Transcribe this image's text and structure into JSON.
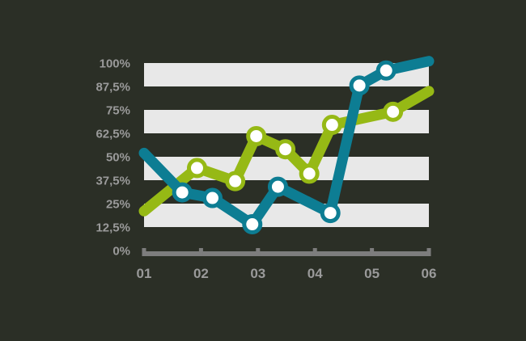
{
  "colors": {
    "background": "#2b2f26",
    "band_light": "#e8e8e8",
    "band_dark": "#2b2f26",
    "axis": "#7d7d7d",
    "tick_label": "#9a9a9a",
    "marker_fill": "#ffffff"
  },
  "chart_data": {
    "type": "line",
    "title": "",
    "xlabel": "",
    "ylabel": "",
    "grid": "alternating horizontal bands",
    "legend": "none",
    "xlim": [
      1,
      6
    ],
    "ylim": [
      0,
      100
    ],
    "x_tick_labels": [
      "01",
      "02",
      "03",
      "04",
      "05",
      "06"
    ],
    "x_tick_values": [
      1,
      2,
      3,
      4,
      5,
      6
    ],
    "y_tick_labels": [
      "0%",
      "12,5%",
      "25%",
      "37,5%",
      "50%",
      "62,5%",
      "75%",
      "87,5%",
      "100%"
    ],
    "y_tick_values": [
      0,
      12.5,
      25,
      37.5,
      50,
      62.5,
      75,
      87.5,
      100
    ],
    "series": [
      {
        "color": "#96b915",
        "points": [
          {
            "x": 1.0,
            "y": 21,
            "marker": false
          },
          {
            "x": 1.93,
            "y": 44,
            "marker": true
          },
          {
            "x": 2.6,
            "y": 37,
            "marker": true
          },
          {
            "x": 2.97,
            "y": 61,
            "marker": true
          },
          {
            "x": 3.48,
            "y": 54,
            "marker": true
          },
          {
            "x": 3.9,
            "y": 41,
            "marker": true
          },
          {
            "x": 4.3,
            "y": 67,
            "marker": true
          },
          {
            "x": 5.37,
            "y": 74,
            "marker": true
          },
          {
            "x": 6.0,
            "y": 85,
            "marker": false
          }
        ]
      },
      {
        "color": "#0d7d93",
        "points": [
          {
            "x": 1.0,
            "y": 52,
            "marker": false
          },
          {
            "x": 1.67,
            "y": 31,
            "marker": true
          },
          {
            "x": 2.2,
            "y": 28,
            "marker": true
          },
          {
            "x": 2.9,
            "y": 14,
            "marker": true
          },
          {
            "x": 3.35,
            "y": 34,
            "marker": true
          },
          {
            "x": 4.27,
            "y": 20,
            "marker": true
          },
          {
            "x": 4.78,
            "y": 88,
            "marker": true
          },
          {
            "x": 5.25,
            "y": 96,
            "marker": true
          },
          {
            "x": 6.0,
            "y": 101,
            "marker": false
          }
        ]
      }
    ]
  }
}
